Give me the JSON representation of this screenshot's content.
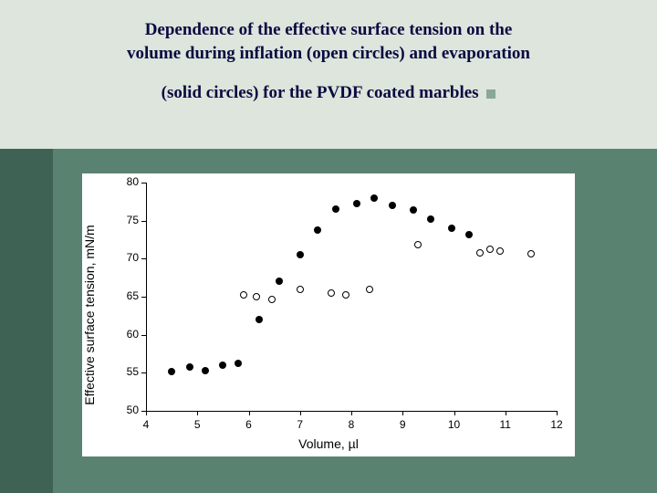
{
  "title": {
    "line1": "Dependence of the effective surface tension on the",
    "line2": "volume during inflation (open circles) and evaporation",
    "line3": "(solid circles) for the PVDF coated marbles",
    "fontsize": 19,
    "color": "#0a0a40"
  },
  "bullet_color": "#8aa89a",
  "background": {
    "top_color": "#dde5dc",
    "left_strip_color": "#3e6354",
    "main_color": "#5a8270"
  },
  "chart": {
    "type": "scatter",
    "xlabel": "Volume, µl",
    "ylabel": "Effective surface tension, mN/m",
    "label_fontsize": 14,
    "tick_fontsize": 12,
    "xlim": [
      4,
      12
    ],
    "ylim": [
      50,
      80
    ],
    "xticks": [
      4,
      5,
      6,
      7,
      8,
      9,
      10,
      11,
      12
    ],
    "yticks": [
      50,
      55,
      60,
      65,
      70,
      75,
      80
    ],
    "background_color": "#ffffff",
    "axis_color": "#000000",
    "tick_length": 5,
    "marker_size": 8,
    "series": [
      {
        "name": "evaporation",
        "marker": "solid",
        "color": "#000000",
        "points": [
          [
            4.5,
            55.2
          ],
          [
            4.85,
            55.8
          ],
          [
            5.15,
            55.3
          ],
          [
            5.5,
            56.0
          ],
          [
            5.8,
            56.3
          ],
          [
            6.2,
            62.0
          ],
          [
            6.6,
            67.0
          ],
          [
            7.0,
            70.5
          ],
          [
            7.35,
            73.8
          ],
          [
            7.7,
            76.5
          ],
          [
            8.1,
            77.2
          ],
          [
            8.45,
            78.0
          ],
          [
            8.8,
            77.0
          ],
          [
            9.2,
            76.4
          ],
          [
            9.55,
            75.2
          ],
          [
            9.95,
            74.0
          ],
          [
            10.3,
            73.2
          ]
        ]
      },
      {
        "name": "inflation",
        "marker": "open",
        "color": "#000000",
        "points": [
          [
            5.9,
            65.2
          ],
          [
            6.15,
            65.0
          ],
          [
            6.45,
            64.7
          ],
          [
            7.0,
            66.0
          ],
          [
            7.6,
            65.5
          ],
          [
            7.9,
            65.3
          ],
          [
            8.35,
            66.0
          ],
          [
            9.3,
            71.9
          ],
          [
            10.5,
            70.8
          ],
          [
            10.7,
            71.3
          ],
          [
            10.9,
            71.0
          ],
          [
            11.5,
            70.7
          ]
        ]
      }
    ]
  }
}
